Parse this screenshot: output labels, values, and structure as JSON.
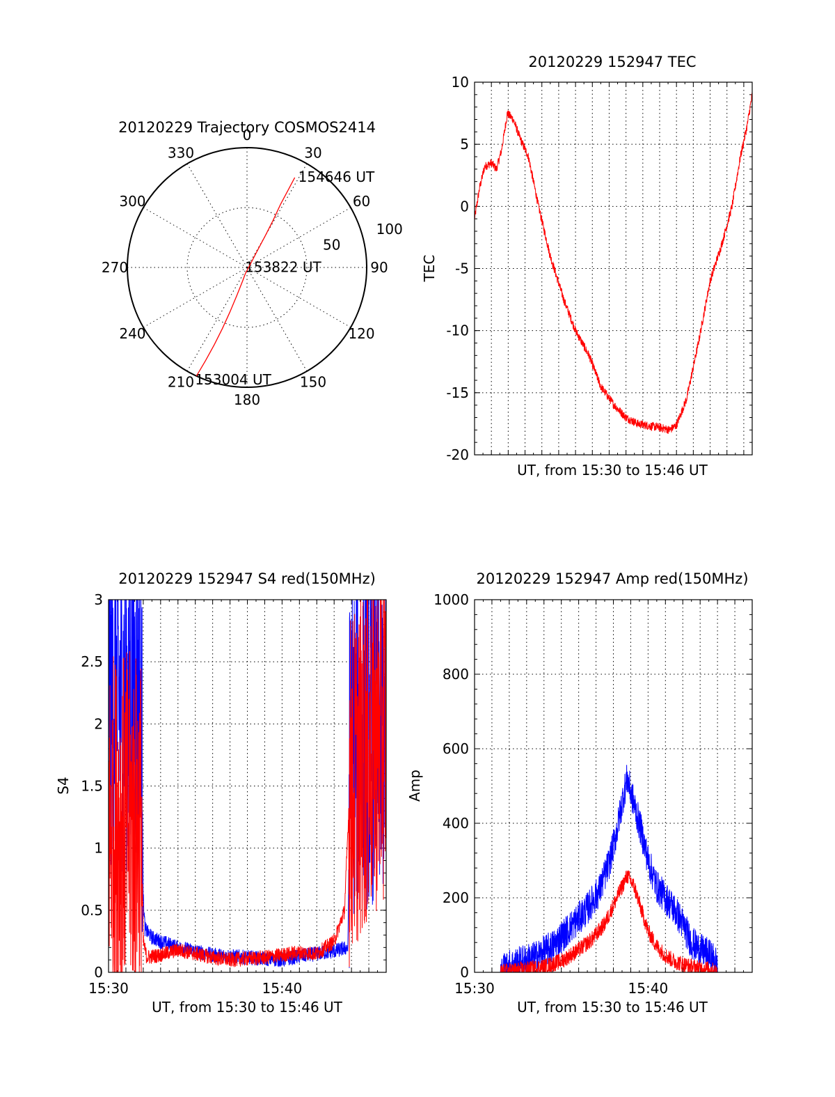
{
  "chart_data": [
    {
      "type": "polar",
      "title": "20120229 Trajectory COSMOS2414",
      "angle_labels": [
        "0",
        "30",
        "60",
        "90",
        "120",
        "150",
        "180",
        "210",
        "240",
        "270",
        "300",
        "330"
      ],
      "radial_labels": [
        "50",
        "100"
      ],
      "rlim": [
        0,
        100
      ],
      "grid": true,
      "trajectory": {
        "color": "#ff0000",
        "points": [
          [
            205,
            100
          ],
          [
            204,
            85
          ],
          [
            203,
            70
          ],
          [
            202,
            55
          ],
          [
            201,
            40
          ],
          [
            200,
            25
          ],
          [
            198,
            12
          ],
          [
            195,
            5
          ],
          [
            45,
            4
          ],
          [
            32,
            15
          ],
          [
            30,
            30
          ],
          [
            29,
            45
          ],
          [
            28,
            60
          ],
          [
            28,
            75
          ],
          [
            28,
            85
          ]
        ]
      },
      "annotations": [
        {
          "text": "154646 UT",
          "at": [
            28,
            85
          ]
        },
        {
          "text": "153822 UT",
          "at": [
            95,
            3
          ]
        },
        {
          "text": "153004 UT",
          "at": [
            205,
            100
          ]
        }
      ]
    },
    {
      "type": "line",
      "title": "20120229 152947 TEC",
      "xlabel": "UT, from 15:30 to 15:46 UT",
      "ylabel": "TEC",
      "xlim": [
        0,
        16.5
      ],
      "ylim": [
        -20,
        10
      ],
      "yticks": [
        "10",
        "5",
        "0",
        "-5",
        "-10",
        "-15",
        "-20"
      ],
      "grid": true,
      "series": [
        {
          "color": "#ff0000",
          "noise": 0.35,
          "points": [
            [
              0,
              -1
            ],
            [
              0.3,
              1.5
            ],
            [
              0.6,
              3.2
            ],
            [
              1.0,
              3.5
            ],
            [
              1.3,
              3.0
            ],
            [
              1.6,
              4.5
            ],
            [
              1.95,
              7.5
            ],
            [
              2.3,
              7.0
            ],
            [
              2.7,
              5.5
            ],
            [
              3.2,
              4.0
            ],
            [
              3.8,
              0
            ],
            [
              4.5,
              -4
            ],
            [
              5.3,
              -7.5
            ],
            [
              6.0,
              -10
            ],
            [
              6.8,
              -12
            ],
            [
              7.5,
              -14.5
            ],
            [
              8.3,
              -16
            ],
            [
              9.0,
              -17
            ],
            [
              9.7,
              -17.5
            ],
            [
              10.5,
              -17.7
            ],
            [
              11.0,
              -17.8
            ],
            [
              11.6,
              -18.0
            ],
            [
              12.0,
              -17.6
            ],
            [
              12.6,
              -15.5
            ],
            [
              13.3,
              -11
            ],
            [
              14.0,
              -6
            ],
            [
              14.7,
              -3
            ],
            [
              15.3,
              0
            ],
            [
              15.8,
              4
            ],
            [
              16.2,
              6.5
            ],
            [
              16.5,
              9
            ]
          ]
        }
      ]
    },
    {
      "type": "line",
      "title": "20120229 152947 S4 red(150MHz)",
      "xlabel": "UT, from 15:30 to 15:46 UT",
      "ylabel": "S4",
      "xlim": [
        0,
        16
      ],
      "ylim": [
        0,
        3
      ],
      "xticks": [
        {
          "v": 0,
          "label": "15:30"
        },
        {
          "v": 10,
          "label": "15:40"
        }
      ],
      "yticks": [
        "3",
        "2.5",
        "2",
        "1.5",
        "1",
        "0.5",
        "0"
      ],
      "grid": true,
      "series": [
        {
          "color": "#0000ff",
          "noise": 0.06,
          "points": [
            [
              0,
              2.2
            ],
            [
              1.9,
              2.2
            ],
            [
              2.0,
              0.6
            ],
            [
              2.1,
              0.35
            ],
            [
              2.5,
              0.28
            ],
            [
              3.0,
              0.25
            ],
            [
              4.0,
              0.2
            ],
            [
              5.0,
              0.17
            ],
            [
              6.0,
              0.14
            ],
            [
              7.0,
              0.13
            ],
            [
              8.0,
              0.12
            ],
            [
              9.0,
              0.11
            ],
            [
              10.0,
              0.1
            ],
            [
              11.0,
              0.13
            ],
            [
              12.0,
              0.15
            ],
            [
              13.0,
              0.17
            ],
            [
              13.8,
              0.2
            ],
            [
              13.9,
              1.8
            ],
            [
              16.0,
              2.0
            ]
          ]
        },
        {
          "color": "#ff0000",
          "noise": 0.06,
          "points": [
            [
              0,
              1.2
            ],
            [
              1.9,
              1.2
            ],
            [
              2.0,
              0.25
            ],
            [
              2.2,
              0.12
            ],
            [
              3.0,
              0.14
            ],
            [
              4.0,
              0.18
            ],
            [
              5.0,
              0.15
            ],
            [
              6.0,
              0.12
            ],
            [
              7.0,
              0.1
            ],
            [
              8.0,
              0.11
            ],
            [
              9.0,
              0.12
            ],
            [
              10.0,
              0.14
            ],
            [
              11.0,
              0.16
            ],
            [
              12.0,
              0.15
            ],
            [
              13.0,
              0.25
            ],
            [
              13.6,
              0.5
            ],
            [
              13.9,
              1.5
            ],
            [
              16.0,
              2.0
            ]
          ]
        }
      ]
    },
    {
      "type": "line",
      "title": "20120229 152947 Amp red(150MHz)",
      "xlabel": "UT, from 15:30 to 15:46 UT",
      "ylabel": "Amp",
      "xlim": [
        0,
        16
      ],
      "ylim": [
        0,
        1000
      ],
      "xticks": [
        {
          "v": 0,
          "label": "15:30"
        },
        {
          "v": 10,
          "label": "15:40"
        }
      ],
      "yticks": [
        "1000",
        "800",
        "600",
        "400",
        "200",
        "0"
      ],
      "grid": true,
      "series": [
        {
          "color": "#0000ff",
          "noise": 45,
          "points": [
            [
              0,
              0
            ],
            [
              1.5,
              0
            ],
            [
              1.8,
              15
            ],
            [
              2.5,
              25
            ],
            [
              3.5,
              40
            ],
            [
              4.5,
              70
            ],
            [
              5.5,
              120
            ],
            [
              6.5,
              170
            ],
            [
              7.2,
              220
            ],
            [
              7.8,
              300
            ],
            [
              8.2,
              380
            ],
            [
              8.6,
              480
            ],
            [
              8.8,
              520
            ],
            [
              9.2,
              450
            ],
            [
              9.6,
              380
            ],
            [
              10.0,
              300
            ],
            [
              10.5,
              230
            ],
            [
              11.0,
              200
            ],
            [
              11.5,
              170
            ],
            [
              12.0,
              130
            ],
            [
              12.5,
              80
            ],
            [
              13.0,
              60
            ],
            [
              13.4,
              50
            ],
            [
              13.9,
              30
            ],
            [
              14.0,
              0
            ],
            [
              16.0,
              0
            ]
          ]
        },
        {
          "color": "#ff0000",
          "noise": 22,
          "points": [
            [
              0,
              0
            ],
            [
              1.5,
              0
            ],
            [
              2.0,
              4
            ],
            [
              3.0,
              8
            ],
            [
              4.0,
              15
            ],
            [
              5.0,
              30
            ],
            [
              6.0,
              60
            ],
            [
              6.8,
              90
            ],
            [
              7.5,
              130
            ],
            [
              8.0,
              180
            ],
            [
              8.5,
              230
            ],
            [
              8.8,
              260
            ],
            [
              9.2,
              230
            ],
            [
              9.6,
              170
            ],
            [
              10.0,
              110
            ],
            [
              10.5,
              70
            ],
            [
              11.0,
              45
            ],
            [
              11.5,
              30
            ],
            [
              12.0,
              22
            ],
            [
              12.5,
              15
            ],
            [
              13.0,
              12
            ],
            [
              13.5,
              8
            ],
            [
              13.8,
              4
            ],
            [
              14.0,
              0
            ],
            [
              16.0,
              0
            ]
          ]
        }
      ]
    }
  ]
}
